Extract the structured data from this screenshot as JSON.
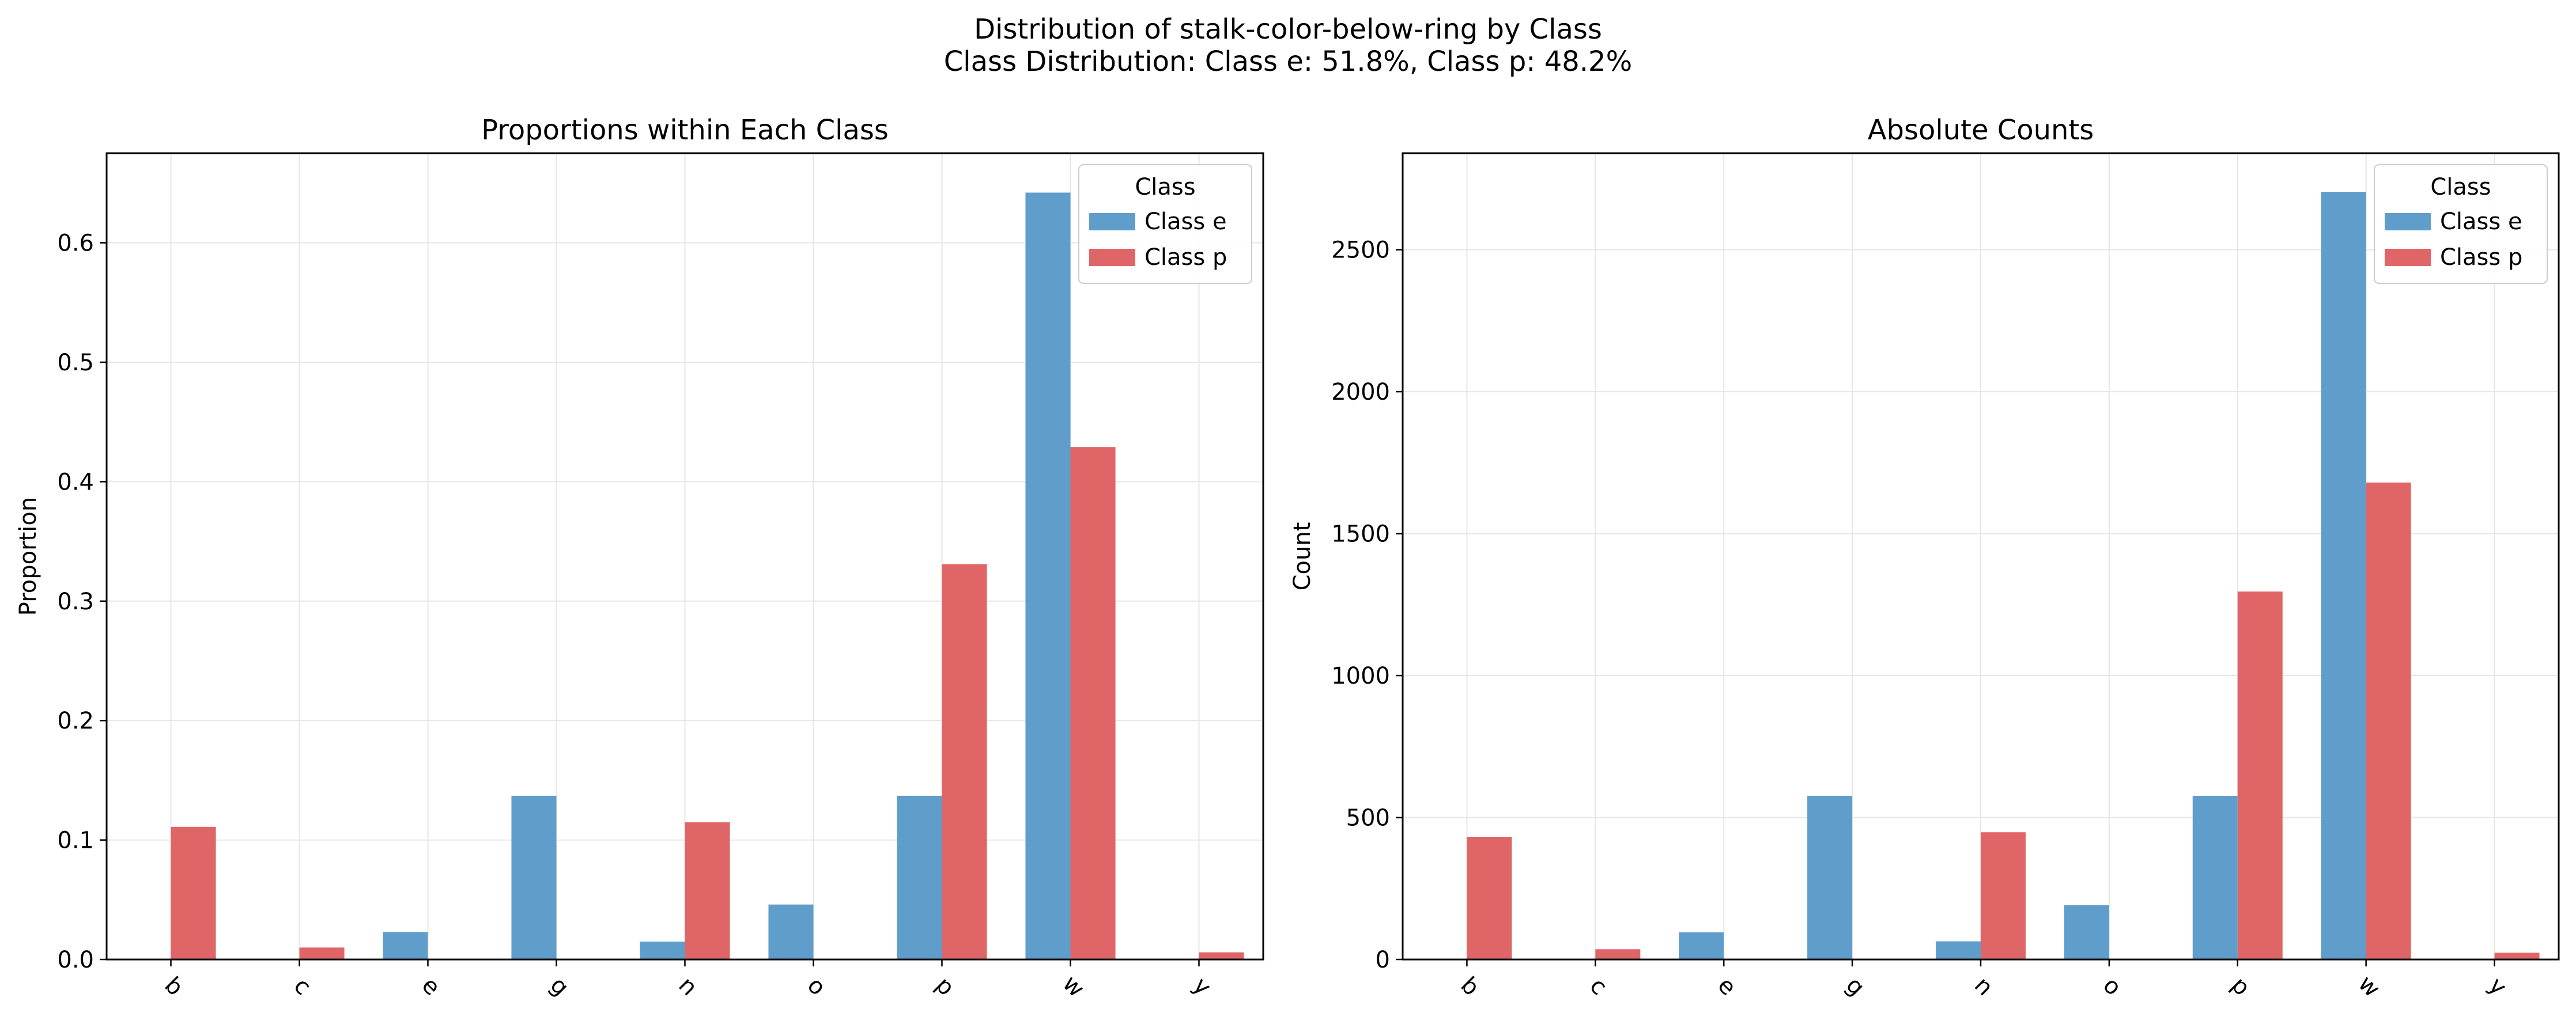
{
  "title": "Distribution of stalk-color-below-ring by Class",
  "subtitle": "Class Distribution: Class e: 51.8%, Class p: 48.2%",
  "colors": {
    "class_e": "#5f9ecb",
    "class_p": "#e06567",
    "grid": "#e6e6e6",
    "axis": "#000000"
  },
  "chart_data": [
    {
      "type": "bar",
      "title": "Proportions within Each Class",
      "xlabel": "",
      "ylabel": "Proportion",
      "categories": [
        "b",
        "c",
        "e",
        "g",
        "n",
        "o",
        "p",
        "w",
        "y"
      ],
      "series": [
        {
          "name": "Class e",
          "values": [
            0.0,
            0.0,
            0.023,
            0.137,
            0.015,
            0.046,
            0.137,
            0.642,
            0.0
          ]
        },
        {
          "name": "Class p",
          "values": [
            0.111,
            0.01,
            0.0,
            0.0,
            0.115,
            0.0,
            0.331,
            0.429,
            0.006
          ]
        }
      ],
      "ylim": [
        0,
        0.675
      ],
      "yticks": [
        "0.0",
        "0.1",
        "0.2",
        "0.3",
        "0.4",
        "0.5",
        "0.6"
      ],
      "grid": true,
      "legend": {
        "title": "Class",
        "position": "top-right"
      }
    },
    {
      "type": "bar",
      "title": "Absolute Counts",
      "xlabel": "",
      "ylabel": "Count",
      "categories": [
        "b",
        "c",
        "e",
        "g",
        "n",
        "o",
        "p",
        "w",
        "y"
      ],
      "series": [
        {
          "name": "Class e",
          "values": [
            0,
            0,
            96,
            576,
            64,
            192,
            576,
            2704,
            0
          ]
        },
        {
          "name": "Class p",
          "values": [
            432,
            36,
            0,
            0,
            448,
            0,
            1296,
            1680,
            24
          ]
        }
      ],
      "ylim": [
        0,
        2840
      ],
      "yticks": [
        "0",
        "500",
        "1000",
        "1500",
        "2000",
        "2500"
      ],
      "grid": true,
      "legend": {
        "title": "Class",
        "position": "top-right"
      }
    }
  ]
}
